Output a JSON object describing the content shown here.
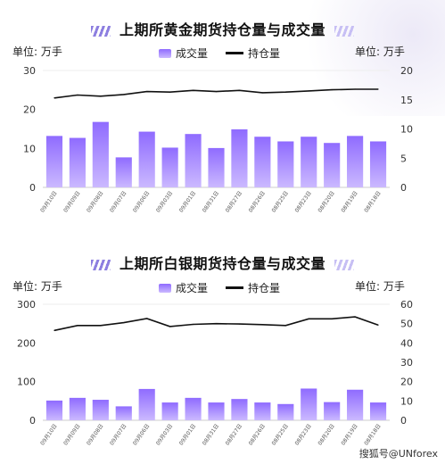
{
  "charts": [
    {
      "title": "上期所黄金期货持仓量与成交量",
      "unit_left": "单位:  万手",
      "unit_right": "单位:  万手",
      "legend_bar": "成交量",
      "legend_line": "持仓量"
    },
    {
      "title": "上期所白银期货持仓量与成交量",
      "unit_left": "单位:  万手",
      "unit_right": "单位:  万手",
      "legend_bar": "成交量",
      "legend_line": "持仓量"
    }
  ],
  "watermark": "搜狐号@UNforex",
  "colors": {
    "bar_top": "#8f6bff",
    "bar_bottom": "#cbb9ff",
    "line": "#111111"
  },
  "chart_data": [
    {
      "type": "bar",
      "title": "上期所黄金期货持仓量与成交量",
      "categories": [
        "09月10日",
        "09月09日",
        "09月08日",
        "09月07日",
        "09月06日",
        "09月03日",
        "09月01日",
        "08月31日",
        "08月27日",
        "08月26日",
        "08月25日",
        "08月23日",
        "08月20日",
        "08月19日",
        "08月18日"
      ],
      "series": [
        {
          "name": "成交量",
          "axis": "left",
          "values": [
            13.2,
            12.7,
            16.8,
            7.7,
            14.3,
            10.2,
            13.7,
            10.1,
            14.9,
            13.0,
            11.8,
            13.0,
            11.4,
            13.2,
            11.8
          ]
        },
        {
          "name": "持仓量",
          "axis": "right",
          "type": "line",
          "values": [
            15.3,
            15.8,
            15.6,
            15.9,
            16.4,
            16.3,
            16.6,
            16.4,
            16.6,
            16.2,
            16.3,
            16.5,
            16.7,
            16.8,
            16.8
          ]
        }
      ],
      "ylim_left": [
        0,
        30
      ],
      "yticks_left": [
        0,
        10,
        20,
        30
      ],
      "ylim_right": [
        0,
        20
      ],
      "yticks_right": [
        0,
        5,
        10,
        15,
        20
      ],
      "ylabel_left": "单位:  万手",
      "ylabel_right": "单位:  万手",
      "legend": "top-center",
      "grid": false
    },
    {
      "type": "bar",
      "title": "上期所白银期货持仓量与成交量",
      "categories": [
        "09月10日",
        "09月09日",
        "09月08日",
        "09月07日",
        "09月06日",
        "09月03日",
        "09月01日",
        "08月31日",
        "08月27日",
        "08月26日",
        "08月25日",
        "08月23日",
        "08月20日",
        "08月19日",
        "08月18日"
      ],
      "series": [
        {
          "name": "成交量",
          "axis": "left",
          "values": [
            51,
            58,
            53,
            36,
            81,
            46,
            58,
            46,
            55,
            46,
            42,
            82,
            47,
            79,
            46
          ]
        },
        {
          "name": "持仓量",
          "axis": "right",
          "type": "line",
          "values": [
            46.5,
            49.0,
            49.0,
            50.5,
            52.6,
            48.5,
            49.6,
            50.0,
            49.8,
            49.5,
            49.0,
            52.5,
            52.5,
            53.5,
            49.3
          ]
        }
      ],
      "ylim_left": [
        0,
        300
      ],
      "yticks_left": [
        0,
        100,
        200,
        300
      ],
      "ylim_right": [
        0,
        60
      ],
      "yticks_right": [
        0,
        10,
        20,
        30,
        40,
        50,
        60
      ],
      "ylabel_left": "单位:  万手",
      "ylabel_right": "单位:  万手",
      "legend": "top-center",
      "grid": false
    }
  ]
}
